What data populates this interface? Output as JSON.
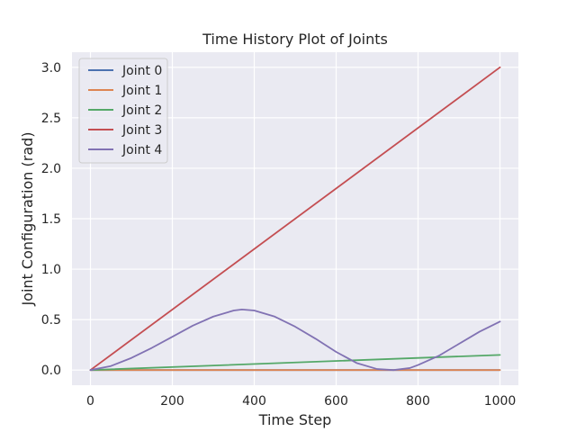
{
  "chart_data": {
    "type": "line",
    "title": "Time History Plot of Joints",
    "xlabel": "Time Step",
    "ylabel": "Joint Configuration (rad)",
    "xlim": [
      -45,
      1045
    ],
    "ylim": [
      -0.15,
      3.15
    ],
    "xticks": [
      0,
      200,
      400,
      600,
      800,
      1000
    ],
    "xtick_labels": [
      "0",
      "200",
      "400",
      "600",
      "800",
      "1000"
    ],
    "yticks": [
      0.0,
      0.5,
      1.0,
      1.5,
      2.0,
      2.5,
      3.0
    ],
    "ytick_labels": [
      "0.0",
      "0.5",
      "1.0",
      "1.5",
      "2.0",
      "2.5",
      "3.0"
    ],
    "grid": true,
    "background": "#eaeaf2",
    "legend_position": "top-left",
    "series": [
      {
        "name": "Joint 0",
        "color": "#4c72b0",
        "x": [
          0,
          1000
        ],
        "y": [
          0.0,
          0.0
        ]
      },
      {
        "name": "Joint 1",
        "color": "#dd8452",
        "x": [
          0,
          100,
          200,
          300,
          400,
          500,
          600,
          700,
          800,
          900,
          1000
        ],
        "y": [
          0.0,
          0.0,
          0.0,
          0.0,
          0.0,
          0.0,
          0.0,
          0.0,
          0.0,
          0.0,
          0.0
        ]
      },
      {
        "name": "Joint 2",
        "color": "#55a868",
        "x": [
          0,
          1000
        ],
        "y": [
          0.0,
          0.15
        ]
      },
      {
        "name": "Joint 3",
        "color": "#c44e52",
        "x": [
          0,
          1000
        ],
        "y": [
          0.0,
          3.0
        ]
      },
      {
        "name": "Joint 4",
        "color": "#8172b3",
        "x": [
          0,
          50,
          100,
          150,
          200,
          250,
          300,
          350,
          370,
          400,
          450,
          500,
          550,
          600,
          650,
          700,
          740,
          780,
          800,
          850,
          900,
          950,
          1000
        ],
        "y": [
          0.0,
          0.04,
          0.12,
          0.22,
          0.33,
          0.44,
          0.53,
          0.59,
          0.6,
          0.59,
          0.53,
          0.43,
          0.31,
          0.18,
          0.07,
          0.01,
          0.0,
          0.02,
          0.05,
          0.14,
          0.26,
          0.38,
          0.48
        ]
      }
    ]
  }
}
